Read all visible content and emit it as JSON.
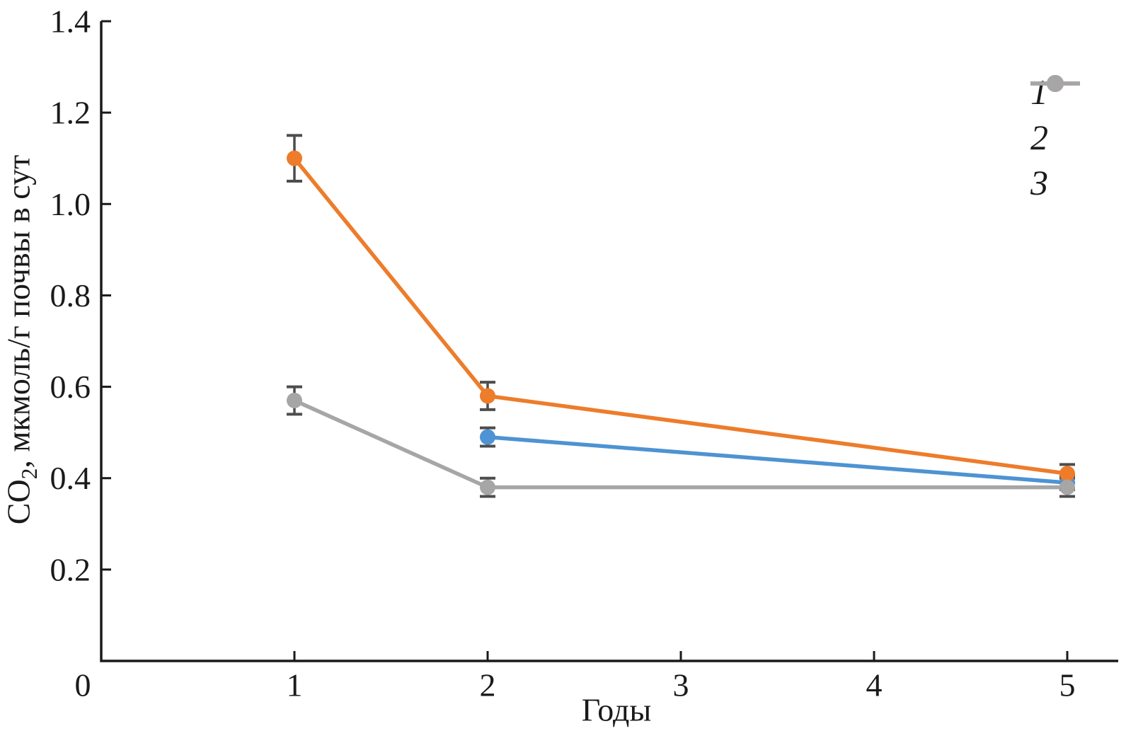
{
  "chart_data": {
    "type": "line",
    "title": "",
    "xlabel": "Годы",
    "ylabel": "CO2, мкмоль/г почвы в сут",
    "ylabel_parts": {
      "prefix": "CO",
      "sub": "2",
      "suffix": ", мкмоль/г почвы в сут"
    },
    "xlim": [
      0,
      5.3
    ],
    "ylim": [
      0,
      1.4
    ],
    "xticks": [
      0,
      1,
      2,
      3,
      4,
      5
    ],
    "yticks": [
      0.2,
      0.4,
      0.6,
      0.8,
      1.0,
      1.2,
      1.4
    ],
    "origin_label": "0",
    "grid": false,
    "legend_position": "top-right",
    "background_color": "#ffffff",
    "axis_color": "#1a1a1a",
    "errorbar_color": "#4d4d4d",
    "series": [
      {
        "name": "1",
        "color": "#4e93d3",
        "points": [
          {
            "x": 2,
            "y": 0.49,
            "err": 0.02
          },
          {
            "x": 5,
            "y": 0.39,
            "err": 0.015
          }
        ]
      },
      {
        "name": "2",
        "color": "#ed7c2b",
        "points": [
          {
            "x": 1,
            "y": 1.1,
            "err": 0.05
          },
          {
            "x": 2,
            "y": 0.58,
            "err": 0.03
          },
          {
            "x": 5,
            "y": 0.41,
            "err": 0.02
          }
        ]
      },
      {
        "name": "3",
        "color": "#a6a6a6",
        "points": [
          {
            "x": 1,
            "y": 0.57,
            "err": 0.03
          },
          {
            "x": 2,
            "y": 0.38,
            "err": 0.02
          },
          {
            "x": 5,
            "y": 0.38,
            "err": 0.02
          }
        ]
      }
    ]
  }
}
